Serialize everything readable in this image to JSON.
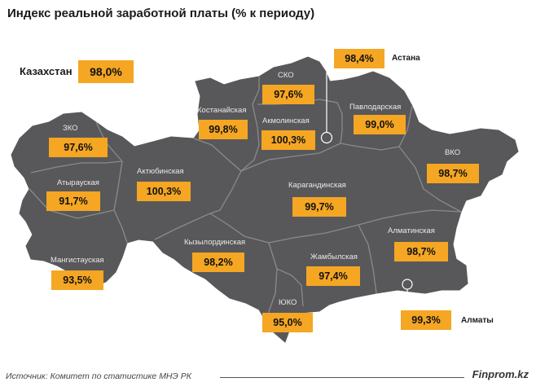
{
  "title": "Индекс реальной заработной платы (%  к периоду)",
  "kazakhstan": {
    "label": "Казахстан",
    "value": "98,0%"
  },
  "regions": {
    "zko": {
      "name": "ЗКО",
      "value": "97,6%"
    },
    "atyrau": {
      "name": "Атырауская",
      "value": "91,7%"
    },
    "mangistau": {
      "name": "Мангистауская",
      "value": "93,5%"
    },
    "aktobe": {
      "name": "Актюбинская",
      "value": "100,3%"
    },
    "kostanay": {
      "name": "Костанайская",
      "value": "99,8%"
    },
    "sko": {
      "name": "СКО",
      "value": "97,6%"
    },
    "akmola": {
      "name": "Акмолинская",
      "value": "100,3%"
    },
    "pavlodar": {
      "name": "Павлодарская",
      "value": "99,0%"
    },
    "vko": {
      "name": "ВКО",
      "value": "98,7%"
    },
    "karaganda": {
      "name": "Карагандинская",
      "value": "99,7%"
    },
    "kyzylorda": {
      "name": "Кызылординская",
      "value": "98,2%"
    },
    "zhambyl": {
      "name": "Жамбылская",
      "value": "97,4%"
    },
    "almaty_region": {
      "name": "Алматинская",
      "value": "98,7%"
    },
    "yuko": {
      "name": "ЮКО",
      "value": "95,0%"
    }
  },
  "cities": {
    "astana": {
      "name": "Астана",
      "value": "98,4%"
    },
    "almaty": {
      "name": "Алматы",
      "value": "99,3%"
    }
  },
  "footer": {
    "source": "Источник:  Комитет по статистике МНЭ РК",
    "brand": "Finprom.kz"
  },
  "colors": {
    "map_fill": "#58585a",
    "border": "#8a8a8c",
    "badge": "#f5a623"
  }
}
